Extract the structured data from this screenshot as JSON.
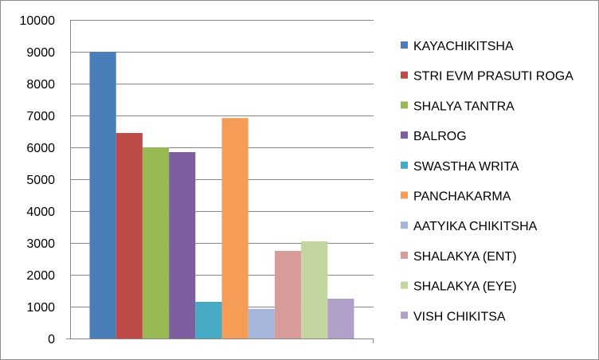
{
  "chart_data": {
    "type": "bar",
    "title": "",
    "xlabel": "",
    "ylabel": "",
    "ylim": [
      0,
      10000
    ],
    "y_ticks": [
      0,
      1000,
      2000,
      3000,
      4000,
      5000,
      6000,
      7000,
      8000,
      9000,
      10000
    ],
    "grid": true,
    "legend_position": "right",
    "categories": [
      ""
    ],
    "series": [
      {
        "name": "KAYACHIKITSHA",
        "values": [
          9000
        ],
        "color": "#4a7ebb"
      },
      {
        "name": "STRI EVM PRASUTI ROGA",
        "values": [
          6450
        ],
        "color": "#be4b48"
      },
      {
        "name": "SHALYA TANTRA",
        "values": [
          6000
        ],
        "color": "#98b954"
      },
      {
        "name": "BALROG",
        "values": [
          5850
        ],
        "color": "#7d5fa0"
      },
      {
        "name": "SWASTHA WRITA",
        "values": [
          1150
        ],
        "color": "#46aac5"
      },
      {
        "name": "PANCHAKARMA",
        "values": [
          6920
        ],
        "color": "#f59d56"
      },
      {
        "name": "AATYIKA CHIKITSHA",
        "values": [
          930
        ],
        "color": "#a5b6da"
      },
      {
        "name": "SHALAKYA (ENT)",
        "values": [
          2750
        ],
        "color": "#d79b9a"
      },
      {
        "name": "SHALAKYA (EYE)",
        "values": [
          3050
        ],
        "color": "#c3d69f"
      },
      {
        "name": "VISH CHIKITSA",
        "values": [
          1250
        ],
        "color": "#b1a0c7"
      }
    ]
  }
}
